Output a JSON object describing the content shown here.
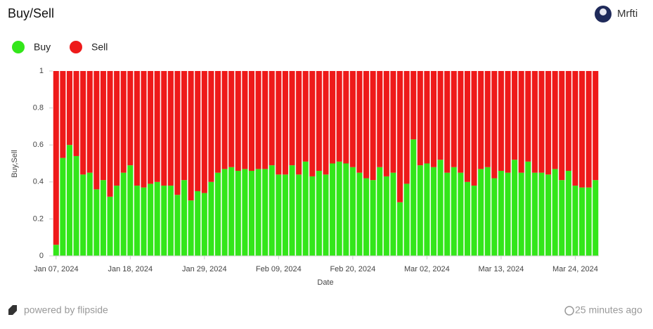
{
  "header": {
    "title": "Buy/Sell",
    "user": "Mrfti"
  },
  "footer": {
    "brand": "powered by flipside",
    "updated": "25 minutes ago"
  },
  "chart_data": {
    "type": "stacked_bar",
    "x_label": "Date",
    "y_label": "Buy,Sell",
    "x": [
      "2024-01-07",
      "2024-01-08",
      "2024-01-09",
      "2024-01-10",
      "2024-01-11",
      "2024-01-12",
      "2024-01-13",
      "2024-01-14",
      "2024-01-15",
      "2024-01-16",
      "2024-01-17",
      "2024-01-18",
      "2024-01-19",
      "2024-01-20",
      "2024-01-21",
      "2024-01-22",
      "2024-01-23",
      "2024-01-24",
      "2024-01-25",
      "2024-01-26",
      "2024-01-27",
      "2024-01-28",
      "2024-01-29",
      "2024-01-30",
      "2024-01-31",
      "2024-02-01",
      "2024-02-02",
      "2024-02-03",
      "2024-02-04",
      "2024-02-05",
      "2024-02-06",
      "2024-02-07",
      "2024-02-08",
      "2024-02-09",
      "2024-02-10",
      "2024-02-11",
      "2024-02-12",
      "2024-02-13",
      "2024-02-14",
      "2024-02-15",
      "2024-02-16",
      "2024-02-17",
      "2024-02-18",
      "2024-02-19",
      "2024-02-20",
      "2024-02-21",
      "2024-02-22",
      "2024-02-23",
      "2024-02-24",
      "2024-02-25",
      "2024-02-26",
      "2024-02-27",
      "2024-02-28",
      "2024-02-29",
      "2024-03-01",
      "2024-03-02",
      "2024-03-03",
      "2024-03-04",
      "2024-03-05",
      "2024-03-06",
      "2024-03-07",
      "2024-03-08",
      "2024-03-09",
      "2024-03-10",
      "2024-03-11",
      "2024-03-12",
      "2024-03-13",
      "2024-03-14",
      "2024-03-15",
      "2024-03-16",
      "2024-03-17",
      "2024-03-18",
      "2024-03-19",
      "2024-03-20",
      "2024-03-21",
      "2024-03-22",
      "2024-03-23",
      "2024-03-24",
      "2024-03-25",
      "2024-03-26",
      "2024-03-27"
    ],
    "series": [
      {
        "name": "Buy",
        "color": "#33e61a",
        "values": [
          0.06,
          0.53,
          0.6,
          0.54,
          0.44,
          0.45,
          0.36,
          0.41,
          0.32,
          0.38,
          0.45,
          0.49,
          0.38,
          0.37,
          0.39,
          0.4,
          0.38,
          0.38,
          0.33,
          0.41,
          0.3,
          0.35,
          0.34,
          0.4,
          0.45,
          0.47,
          0.48,
          0.46,
          0.47,
          0.46,
          0.47,
          0.47,
          0.49,
          0.44,
          0.44,
          0.49,
          0.44,
          0.51,
          0.43,
          0.46,
          0.44,
          0.5,
          0.51,
          0.5,
          0.48,
          0.45,
          0.42,
          0.41,
          0.48,
          0.43,
          0.45,
          0.29,
          0.39,
          0.63,
          0.49,
          0.5,
          0.48,
          0.52,
          0.45,
          0.48,
          0.45,
          0.4,
          0.38,
          0.47,
          0.48,
          0.42,
          0.46,
          0.45,
          0.52,
          0.45,
          0.51,
          0.45,
          0.45,
          0.44,
          0.47,
          0.41,
          0.46,
          0.38,
          0.37,
          0.37,
          0.41
        ]
      },
      {
        "name": "Sell",
        "color": "#ee1a1a",
        "values": [
          0.94,
          0.47,
          0.4,
          0.46,
          0.56,
          0.55,
          0.64,
          0.59,
          0.68,
          0.62,
          0.55,
          0.51,
          0.62,
          0.63,
          0.61,
          0.6,
          0.62,
          0.62,
          0.67,
          0.59,
          0.7,
          0.65,
          0.66,
          0.6,
          0.55,
          0.53,
          0.52,
          0.54,
          0.53,
          0.54,
          0.53,
          0.53,
          0.51,
          0.56,
          0.56,
          0.51,
          0.56,
          0.49,
          0.57,
          0.54,
          0.56,
          0.5,
          0.49,
          0.5,
          0.52,
          0.55,
          0.58,
          0.59,
          0.52,
          0.57,
          0.55,
          0.71,
          0.61,
          0.37,
          0.51,
          0.5,
          0.52,
          0.48,
          0.55,
          0.52,
          0.55,
          0.6,
          0.62,
          0.53,
          0.52,
          0.58,
          0.54,
          0.55,
          0.48,
          0.55,
          0.49,
          0.55,
          0.55,
          0.56,
          0.53,
          0.59,
          0.54,
          0.62,
          0.63,
          0.63,
          0.59
        ]
      }
    ],
    "xticks": [
      {
        "value": "2024-01-07",
        "label": "Jan 07, 2024"
      },
      {
        "value": "2024-01-18",
        "label": "Jan 18, 2024"
      },
      {
        "value": "2024-01-29",
        "label": "Jan 29, 2024"
      },
      {
        "value": "2024-02-09",
        "label": "Feb 09, 2024"
      },
      {
        "value": "2024-02-20",
        "label": "Feb 20, 2024"
      },
      {
        "value": "2024-03-02",
        "label": "Mar 02, 2024"
      },
      {
        "value": "2024-03-13",
        "label": "Mar 13, 2024"
      },
      {
        "value": "2024-03-24",
        "label": "Mar 24, 2024"
      }
    ],
    "ylim": [
      0,
      1
    ],
    "yticks": [
      0,
      0.2,
      0.4,
      0.6,
      0.8,
      1
    ],
    "legend": "top-left"
  }
}
